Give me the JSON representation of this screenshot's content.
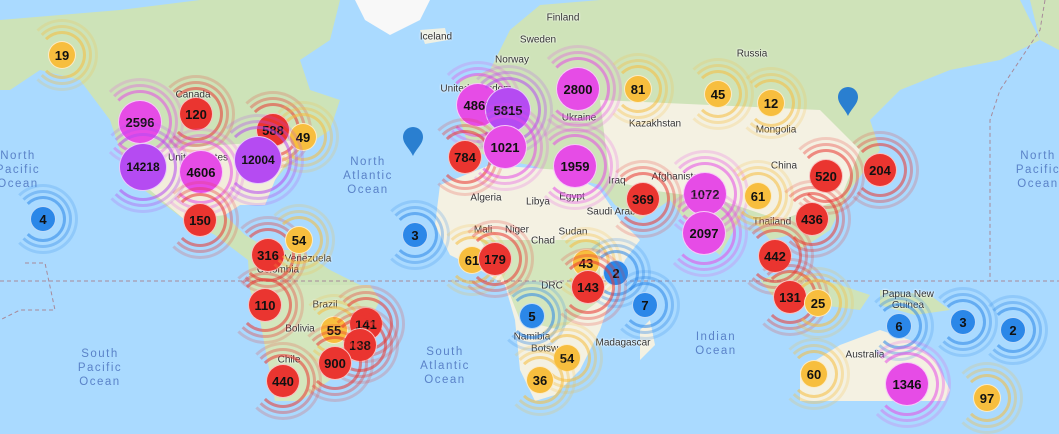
{
  "map": {
    "colors": {
      "ocean": "#aadaff",
      "land": "#f4f1e2",
      "forest": "#cde3b8",
      "ice": "#f8f8f8",
      "border": "#a88a9a"
    },
    "tier_colors": {
      "blue": "#2b87e8",
      "yellow": "#f7be3e",
      "red": "#ea3530",
      "pink": "#e64ce6",
      "purple": "#b54bf2"
    },
    "oceans": [
      "North\nPacific\nOcean",
      "North\nAtlantic\nOcean",
      "South\nPacific\nOcean",
      "South\nAtlantic\nOcean",
      "Indian\nOcean",
      "North\nPacific\nOcean"
    ],
    "countries": [
      "Iceland",
      "Finland",
      "Sweden",
      "Norway",
      "Russia",
      "Kazakhstan",
      "Mongolia",
      "China",
      "Canada",
      "United States",
      "Venezuela",
      "Colombia",
      "Brazil",
      "Bolivia",
      "Chile",
      "Algeria",
      "Libya",
      "Egypt",
      "Mali",
      "Niger",
      "Chad",
      "Sudan",
      "DRC",
      "Namibia",
      "Botswana",
      "Madagascar",
      "Saudi Arabia",
      "Iraq",
      "Afghanistan",
      "Thailand",
      "Papua New\nGuinea",
      "Australia",
      "Ukraine",
      "United Kingdom"
    ],
    "clusters": [
      {
        "count": "19",
        "tier": "yellow"
      },
      {
        "count": "2596",
        "tier": "pink"
      },
      {
        "count": "120",
        "tier": "red"
      },
      {
        "count": "588",
        "tier": "red"
      },
      {
        "count": "49",
        "tier": "yellow"
      },
      {
        "count": "14218",
        "tier": "purple"
      },
      {
        "count": "4606",
        "tier": "pink"
      },
      {
        "count": "12004",
        "tier": "purple"
      },
      {
        "count": "150",
        "tier": "red"
      },
      {
        "count": "4",
        "tier": "blue"
      },
      {
        "count": "316",
        "tier": "red"
      },
      {
        "count": "54",
        "tier": "yellow"
      },
      {
        "count": "110",
        "tier": "red"
      },
      {
        "count": "55",
        "tier": "yellow"
      },
      {
        "count": "141",
        "tier": "red"
      },
      {
        "count": "138",
        "tier": "red"
      },
      {
        "count": "900",
        "tier": "red"
      },
      {
        "count": "440",
        "tier": "red"
      },
      {
        "count": "3",
        "tier": "blue"
      },
      {
        "count": "61",
        "tier": "yellow"
      },
      {
        "count": "179",
        "tier": "red"
      },
      {
        "count": "4869",
        "tier": "pink"
      },
      {
        "count": "5815",
        "tier": "purple"
      },
      {
        "count": "784",
        "tier": "red"
      },
      {
        "count": "1021",
        "tier": "pink"
      },
      {
        "count": "2800",
        "tier": "pink"
      },
      {
        "count": "81",
        "tier": "yellow"
      },
      {
        "count": "45",
        "tier": "yellow"
      },
      {
        "count": "12",
        "tier": "yellow"
      },
      {
        "count": "1959",
        "tier": "pink"
      },
      {
        "count": "369",
        "tier": "red"
      },
      {
        "count": "1072",
        "tier": "pink"
      },
      {
        "count": "2097",
        "tier": "pink"
      },
      {
        "count": "61",
        "tier": "yellow"
      },
      {
        "count": "520",
        "tier": "red"
      },
      {
        "count": "204",
        "tier": "red"
      },
      {
        "count": "436",
        "tier": "red"
      },
      {
        "count": "442",
        "tier": "red"
      },
      {
        "count": "43",
        "tier": "yellow"
      },
      {
        "count": "2",
        "tier": "blue"
      },
      {
        "count": "143",
        "tier": "red"
      },
      {
        "count": "7",
        "tier": "blue"
      },
      {
        "count": "5",
        "tier": "blue"
      },
      {
        "count": "131",
        "tier": "red"
      },
      {
        "count": "25",
        "tier": "yellow"
      },
      {
        "count": "6",
        "tier": "blue"
      },
      {
        "count": "3",
        "tier": "blue"
      },
      {
        "count": "2",
        "tier": "blue"
      },
      {
        "count": "54",
        "tier": "yellow"
      },
      {
        "count": "36",
        "tier": "yellow"
      },
      {
        "count": "60",
        "tier": "yellow"
      },
      {
        "count": "1346",
        "tier": "pink"
      },
      {
        "count": "97",
        "tier": "yellow"
      }
    ],
    "markers": [
      {
        "icon": "map-pin-icon",
        "color": "#2a7fd0"
      },
      {
        "icon": "map-pin-icon",
        "color": "#2a7fd0"
      }
    ]
  }
}
